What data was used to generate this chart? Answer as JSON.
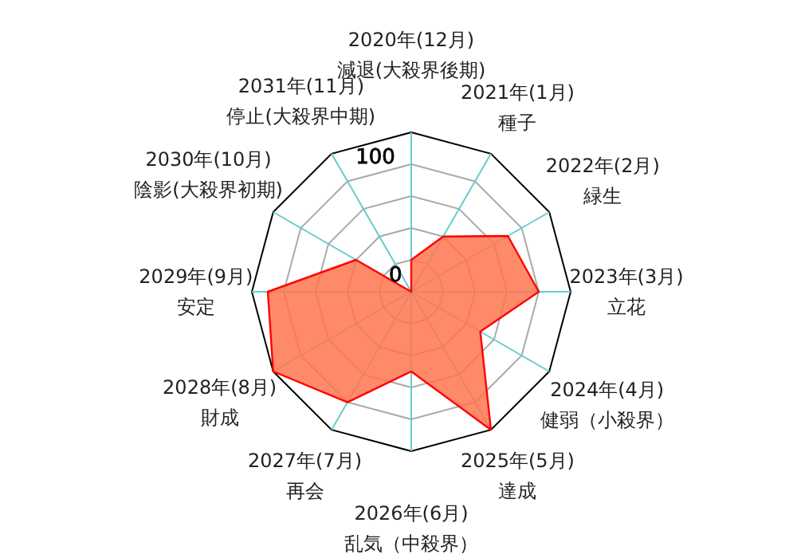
{
  "chart_data": {
    "type": "radar",
    "categories": [
      "2020年(12月)\n減退(大殺界後期)",
      "2021年(1月)\n種子",
      "2022年(2月)\n緑生",
      "2023年(3月)\n立花",
      "2024年(4月)\n健弱（小殺界）",
      "2025年(5月)\n達成",
      "2026年(6月)\n乱気（中殺界）",
      "2027年(7月)\n再会",
      "2028年(8月)\n財成",
      "2029年(9月)\n安定",
      "2030年(10月)\n陰影(大殺界初期)",
      "2031年(11月)\n停止(大殺界中期)"
    ],
    "series": [
      {
        "color": "#ff7650",
        "values": [
          20,
          40,
          70,
          80,
          50,
          100,
          50,
          80,
          100,
          90,
          40,
          0
        ]
      }
    ],
    "ylim": [
      0,
      100
    ],
    "yticks": [
      0,
      100
    ],
    "grid": true
  }
}
